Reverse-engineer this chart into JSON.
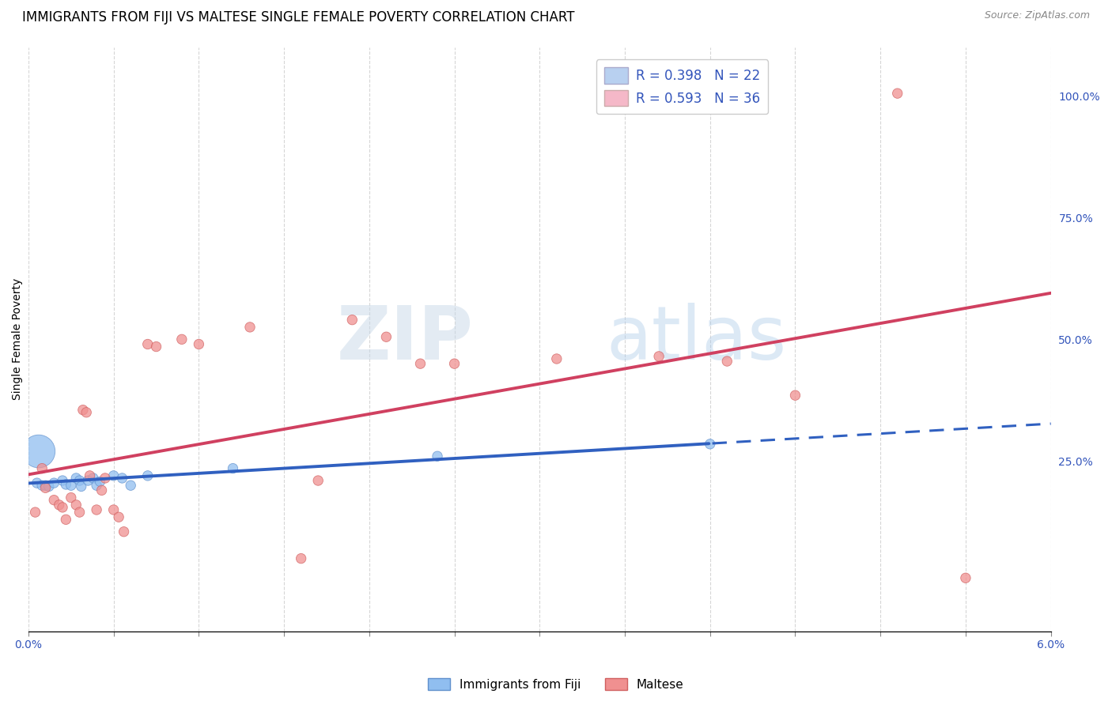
{
  "title": "IMMIGRANTS FROM FIJI VS MALTESE SINGLE FEMALE POVERTY CORRELATION CHART",
  "source": "Source: ZipAtlas.com",
  "ylabel": "Single Female Poverty",
  "right_yticks": [
    "100.0%",
    "75.0%",
    "50.0%",
    "25.0%"
  ],
  "right_ytick_vals": [
    1.0,
    0.75,
    0.5,
    0.25
  ],
  "xlim": [
    0.0,
    0.06
  ],
  "ylim": [
    -0.1,
    1.1
  ],
  "watermark_zip": "ZIP",
  "watermark_atlas": "atlas",
  "legend_entries": [
    {
      "label": "R = 0.398   N = 22",
      "color": "#b8d0f0"
    },
    {
      "label": "R = 0.593   N = 36",
      "color": "#f5b8c8"
    }
  ],
  "fiji_scatter": [
    [
      0.0005,
      0.205
    ],
    [
      0.0008,
      0.2
    ],
    [
      0.001,
      0.2
    ],
    [
      0.0012,
      0.198
    ],
    [
      0.0015,
      0.205
    ],
    [
      0.002,
      0.21
    ],
    [
      0.0022,
      0.202
    ],
    [
      0.0025,
      0.2
    ],
    [
      0.0028,
      0.215
    ],
    [
      0.003,
      0.21
    ],
    [
      0.0031,
      0.198
    ],
    [
      0.0035,
      0.21
    ],
    [
      0.0038,
      0.215
    ],
    [
      0.004,
      0.2
    ],
    [
      0.0042,
      0.208
    ],
    [
      0.005,
      0.22
    ],
    [
      0.0055,
      0.215
    ],
    [
      0.006,
      0.2
    ],
    [
      0.007,
      0.22
    ],
    [
      0.012,
      0.235
    ],
    [
      0.024,
      0.26
    ],
    [
      0.04,
      0.285
    ],
    [
      0.0006,
      0.27
    ]
  ],
  "fiji_sizes": [
    80,
    80,
    80,
    80,
    80,
    80,
    80,
    80,
    80,
    80,
    80,
    80,
    80,
    80,
    80,
    80,
    80,
    80,
    80,
    80,
    80,
    80,
    900
  ],
  "maltese_scatter": [
    [
      0.0004,
      0.145
    ],
    [
      0.0008,
      0.235
    ],
    [
      0.001,
      0.195
    ],
    [
      0.0015,
      0.17
    ],
    [
      0.0018,
      0.16
    ],
    [
      0.002,
      0.155
    ],
    [
      0.0022,
      0.13
    ],
    [
      0.0025,
      0.175
    ],
    [
      0.0028,
      0.16
    ],
    [
      0.003,
      0.145
    ],
    [
      0.0032,
      0.355
    ],
    [
      0.0034,
      0.35
    ],
    [
      0.0036,
      0.22
    ],
    [
      0.004,
      0.15
    ],
    [
      0.0043,
      0.19
    ],
    [
      0.0045,
      0.215
    ],
    [
      0.005,
      0.15
    ],
    [
      0.0053,
      0.135
    ],
    [
      0.0056,
      0.105
    ],
    [
      0.007,
      0.49
    ],
    [
      0.0075,
      0.485
    ],
    [
      0.009,
      0.5
    ],
    [
      0.01,
      0.49
    ],
    [
      0.013,
      0.525
    ],
    [
      0.016,
      0.05
    ],
    [
      0.017,
      0.21
    ],
    [
      0.019,
      0.54
    ],
    [
      0.021,
      0.505
    ],
    [
      0.023,
      0.45
    ],
    [
      0.025,
      0.45
    ],
    [
      0.031,
      0.46
    ],
    [
      0.037,
      0.465
    ],
    [
      0.041,
      0.455
    ],
    [
      0.045,
      0.385
    ],
    [
      0.051,
      1.005
    ],
    [
      0.055,
      0.01
    ]
  ],
  "maltese_sizes": [
    80,
    80,
    80,
    80,
    80,
    80,
    80,
    80,
    80,
    80,
    80,
    80,
    80,
    80,
    80,
    80,
    80,
    80,
    80,
    80,
    80,
    80,
    80,
    80,
    80,
    80,
    80,
    80,
    80,
    80,
    80,
    80,
    80,
    80,
    80,
    80
  ],
  "fiji_color": "#90bef0",
  "fiji_edge_color": "#6090cc",
  "maltese_color": "#f09090",
  "maltese_edge_color": "#d06060",
  "bg_color": "#ffffff",
  "grid_color": "#cccccc",
  "trend_fiji_color": "#3060c0",
  "trend_maltese_color": "#d04060",
  "title_fontsize": 12,
  "axis_label_fontsize": 10,
  "legend_fontsize": 12,
  "tick_color": "#3355bb"
}
